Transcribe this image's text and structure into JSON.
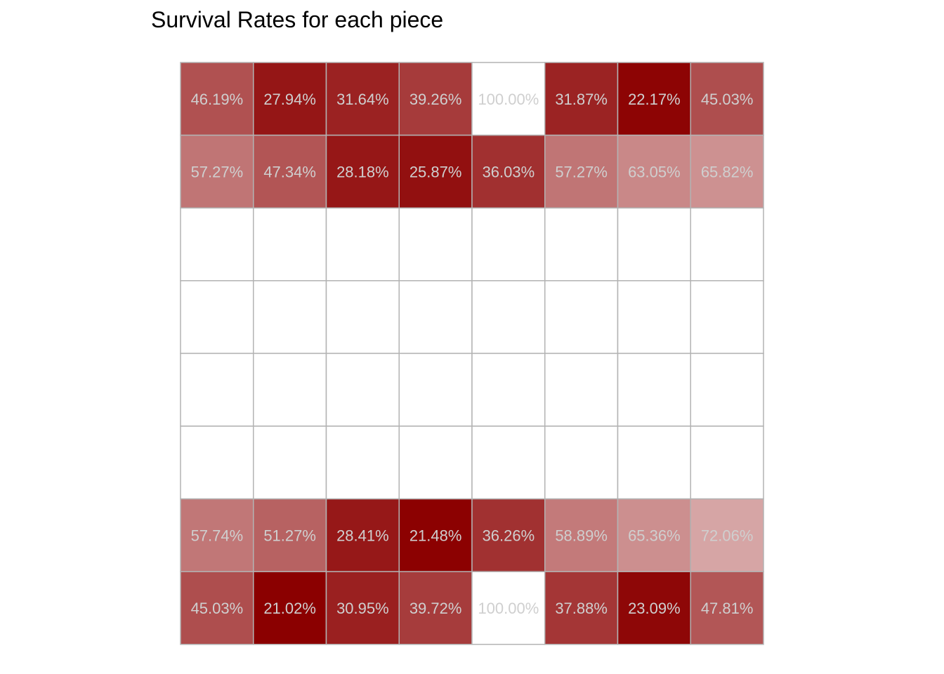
{
  "chart_data": {
    "type": "heatmap",
    "title": "Survival Rates for each piece",
    "rows": 8,
    "cols": 8,
    "values": [
      [
        "46.19%",
        "27.94%",
        "31.64%",
        "39.26%",
        "100.00%",
        "31.87%",
        "22.17%",
        "45.03%"
      ],
      [
        "57.27%",
        "47.34%",
        "28.18%",
        "25.87%",
        "36.03%",
        "57.27%",
        "63.05%",
        "65.82%"
      ],
      [
        null,
        null,
        null,
        null,
        null,
        null,
        null,
        null
      ],
      [
        null,
        null,
        null,
        null,
        null,
        null,
        null,
        null
      ],
      [
        null,
        null,
        null,
        null,
        null,
        null,
        null,
        null
      ],
      [
        null,
        null,
        null,
        null,
        null,
        null,
        null,
        null
      ],
      [
        "57.74%",
        "51.27%",
        "28.41%",
        "21.48%",
        "36.26%",
        "58.89%",
        "65.36%",
        "72.06%"
      ],
      [
        "45.03%",
        "21.02%",
        "30.95%",
        "39.72%",
        "100.00%",
        "37.88%",
        "23.09%",
        "47.81%"
      ]
    ],
    "color_low": "#8b0000",
    "color_high": "#ffffff",
    "grid_color": "#b3b3b3",
    "label_color": "#cfcfcf",
    "empty_fill": "#ffffff"
  }
}
